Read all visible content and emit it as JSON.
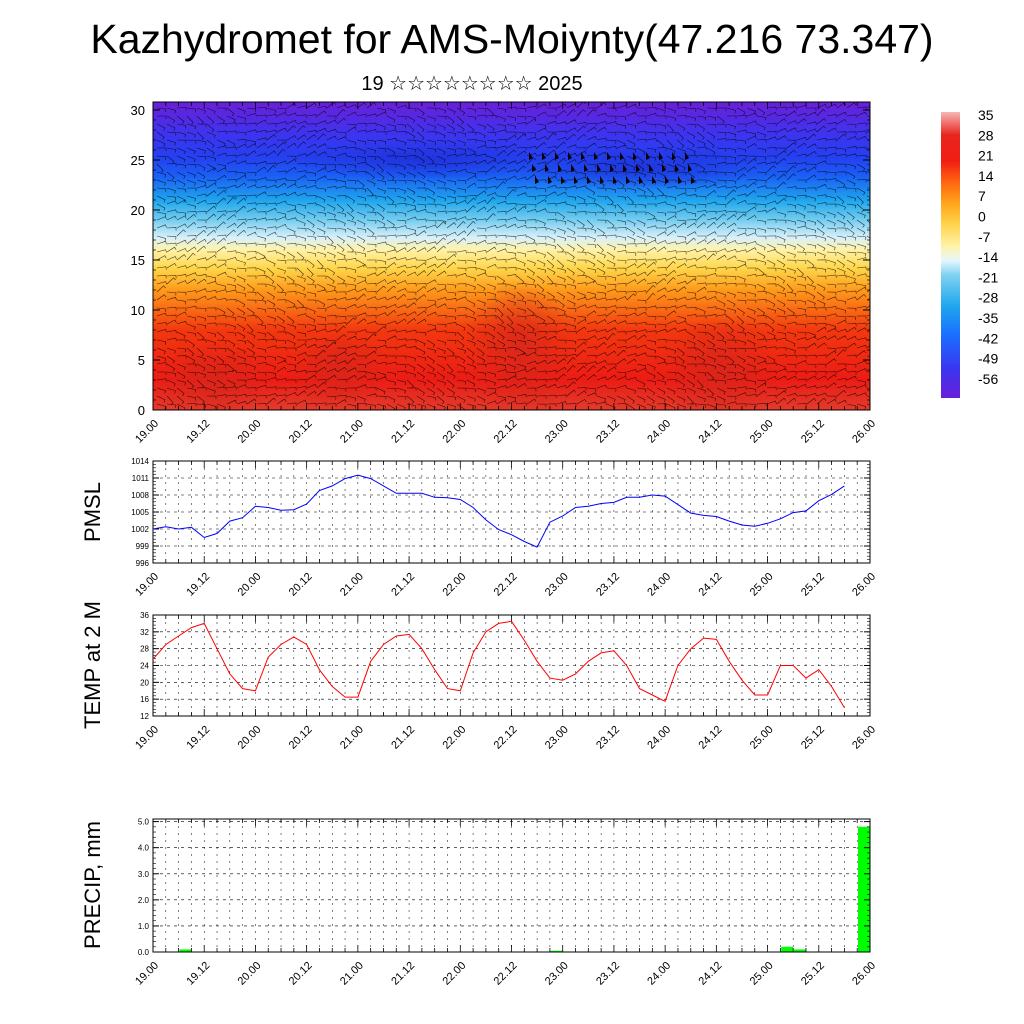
{
  "header": {
    "title": "Kazhydromet for AMS-Moiynty(47.216 73.347)",
    "subtitle": "19 ☆☆☆☆☆☆☆☆ 2025"
  },
  "time_ticks": [
    "19.00",
    "19.12",
    "20.00",
    "20.12",
    "21.00",
    "21.12",
    "22.00",
    "22.12",
    "23.00",
    "23.12",
    "24.00",
    "24.12",
    "25.00",
    "25.12",
    "26.00"
  ],
  "chart_data": [
    {
      "type": "heatmap",
      "title": "",
      "xlabel": "",
      "ylabel": "",
      "categories": [
        "19.00",
        "19.12",
        "20.00",
        "20.12",
        "21.00",
        "21.12",
        "22.00",
        "22.12",
        "23.00",
        "23.12",
        "24.00",
        "24.12",
        "25.00",
        "25.12",
        "26.00"
      ],
      "y_ticks": [
        0,
        5,
        10,
        15,
        20,
        25,
        30
      ],
      "ylim": [
        0,
        30.8
      ],
      "colorbar": {
        "labels": [
          "35",
          "28",
          "21",
          "14",
          "7",
          "0",
          "-7",
          "-14",
          "-21",
          "-28",
          "-35",
          "-42",
          "-49",
          "-56"
        ],
        "range": [
          -59,
          38
        ],
        "colors": {
          "-59": "#6a1fd8",
          "-49": "#3b35f0",
          "-38": "#1a6fff",
          "-28": "#1fa6ee",
          "-17": "#7ed2f0",
          "-12": "#e6f6ff",
          "-8": "#fff3a8",
          "0": "#ffd24a",
          "7": "#ffa51c",
          "14": "#ff6a10",
          "21": "#f11d13",
          "30": "#e8261f",
          "38": "#f7b6b6"
        }
      },
      "temperature_profile": {
        "levels": [
          0,
          3,
          8,
          12,
          14,
          16,
          18,
          20,
          22,
          24,
          26,
          28,
          31
        ],
        "values": [
          24,
          21,
          14,
          4,
          -5,
          -10,
          -17,
          -24,
          -32,
          -42,
          -48,
          -50,
          -58
        ]
      },
      "overlay": "wind barbs"
    },
    {
      "type": "line",
      "ylabel": "PMSL",
      "y_ticks": [
        996,
        999,
        1002,
        1005,
        1008,
        1011,
        1014
      ],
      "ylim": [
        996,
        1014
      ],
      "xlim": [
        0,
        14
      ],
      "line_color": "#0000ff",
      "x": [
        0,
        0.25,
        0.5,
        0.75,
        1,
        1.25,
        1.5,
        1.75,
        2,
        2.25,
        2.5,
        2.75,
        3,
        3.25,
        3.5,
        3.75,
        4,
        4.25,
        4.5,
        4.75,
        5,
        5.25,
        5.5,
        5.75,
        6,
        6.25,
        6.5,
        6.75,
        7,
        7.25,
        7.5,
        7.75,
        8,
        8.25,
        8.5,
        8.75,
        9,
        9.25,
        9.5,
        9.75,
        10,
        10.25,
        10.5,
        10.75,
        11,
        11.25,
        11.5,
        11.75,
        12,
        12.25,
        12.5,
        12.75,
        13,
        13.25,
        13.5
      ],
      "series": [
        {
          "values": [
            1002,
            1002.4,
            1002,
            1002.3,
            1000.5,
            1001.2,
            1003.4,
            1004,
            1006,
            1005.8,
            1005.3,
            1005.4,
            1006.4,
            1008.8,
            1009.6,
            1010.9,
            1011.5,
            1010.9,
            1009.6,
            1008.3,
            1008.3,
            1008.3,
            1007.6,
            1007.5,
            1007.2,
            1005.8,
            1003.6,
            1001.9,
            1001,
            999.8,
            998.8,
            1003.2,
            1004.3,
            1005.8,
            1006,
            1006.5,
            1006.7,
            1007.6,
            1007.6,
            1008,
            1007.8,
            1006.3,
            1004.8,
            1004.4,
            1004.2,
            1003.4,
            1002.7,
            1002.5,
            1003,
            1003.8,
            1004.9,
            1005.2,
            1007,
            1008.1,
            1009.6
          ]
        }
      ]
    },
    {
      "type": "line",
      "ylabel": "TEMP at 2 M",
      "y_ticks": [
        12,
        16,
        20,
        24,
        28,
        32,
        36
      ],
      "ylim": [
        12,
        36
      ],
      "xlim": [
        0,
        14
      ],
      "line_color": "#ff0000",
      "x": [
        0,
        0.25,
        0.5,
        0.75,
        1,
        1.25,
        1.5,
        1.75,
        2,
        2.25,
        2.5,
        2.75,
        3,
        3.25,
        3.5,
        3.75,
        4,
        4.25,
        4.5,
        4.75,
        5,
        5.25,
        5.5,
        5.75,
        6,
        6.25,
        6.5,
        6.75,
        7,
        7.25,
        7.5,
        7.75,
        8,
        8.25,
        8.5,
        8.75,
        9,
        9.25,
        9.5,
        9.75,
        10,
        10.25,
        10.5,
        10.75,
        11,
        11.25,
        11.5,
        11.75,
        12,
        12.25,
        12.5,
        12.75,
        13,
        13.25,
        13.5
      ],
      "series": [
        {
          "values": [
            25.5,
            29,
            31,
            33,
            34,
            28,
            22,
            18.5,
            18,
            26,
            29,
            30.8,
            29,
            23,
            19,
            16.5,
            16.5,
            25,
            29,
            31,
            31.4,
            28,
            23,
            18.5,
            18,
            27,
            32,
            34,
            34.5,
            30,
            25,
            21,
            20.5,
            22,
            25,
            27,
            27.5,
            24,
            18.5,
            17,
            15.5,
            24,
            28,
            30.5,
            30.2,
            25,
            20.5,
            17,
            17,
            24,
            24,
            21,
            23,
            19,
            14
          ]
        }
      ]
    },
    {
      "type": "bar",
      "ylabel": "PRECIP, mm",
      "y_ticks": [
        "0.0",
        "1.0",
        "2.0",
        "3.0",
        "4.0",
        "5.0"
      ],
      "ylim": [
        0,
        5.1
      ],
      "xlim": [
        0,
        14
      ],
      "bar_color": "#00ff00",
      "x": [
        0.75,
        8,
        12.5,
        12.75,
        14
      ],
      "values": [
        0.1,
        0.05,
        0.2,
        0.1,
        4.8
      ]
    }
  ]
}
